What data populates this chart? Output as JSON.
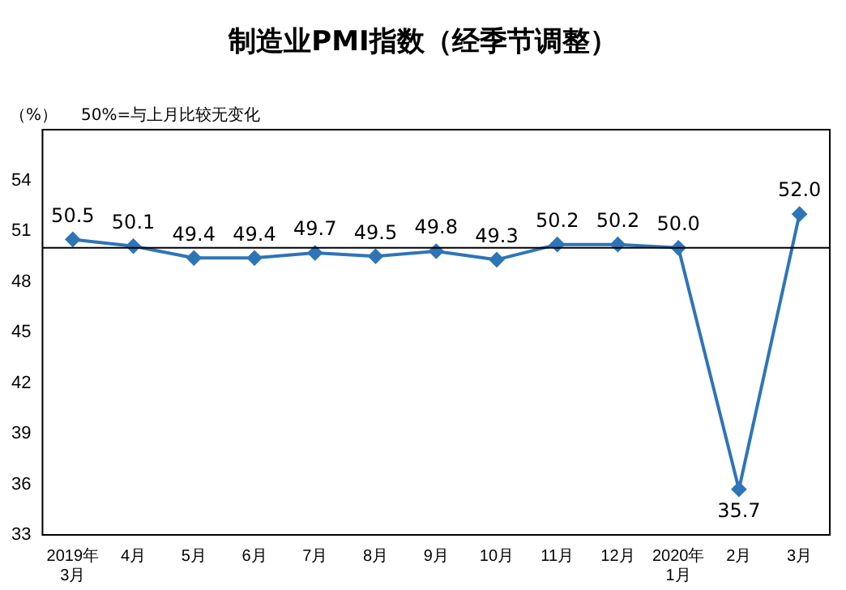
{
  "chart_data": {
    "type": "line",
    "title": "制造业PMI指数（经季节调整）",
    "ylabel": "（%）",
    "annotations": [
      "50%=与上月比较无变化"
    ],
    "categories": [
      "2019年\n3月",
      "4月",
      "5月",
      "6月",
      "7月",
      "8月",
      "9月",
      "10月",
      "11月",
      "12月",
      "2020年\n1月",
      "2月",
      "3月"
    ],
    "series": [
      {
        "color": "#2e75b6",
        "values": [
          50.5,
          50.1,
          49.4,
          49.4,
          49.7,
          49.5,
          49.8,
          49.3,
          50.2,
          50.2,
          50.0,
          35.7,
          52.0
        ],
        "value_labels": [
          "50.5",
          "50.1",
          "49.4",
          "49.4",
          "49.7",
          "49.5",
          "49.8",
          "49.3",
          "50.2",
          "50.2",
          "50.0",
          "35.7",
          "52.0"
        ]
      }
    ],
    "ylim": [
      33,
      57
    ],
    "yticks": [
      33,
      36,
      39,
      42,
      45,
      48,
      51,
      54
    ],
    "ref_lines": [
      {
        "axis": "y",
        "value": 50,
        "color": "#000000"
      }
    ],
    "grid": false,
    "legend": false,
    "marker": "diamond",
    "line_style": "solid"
  }
}
